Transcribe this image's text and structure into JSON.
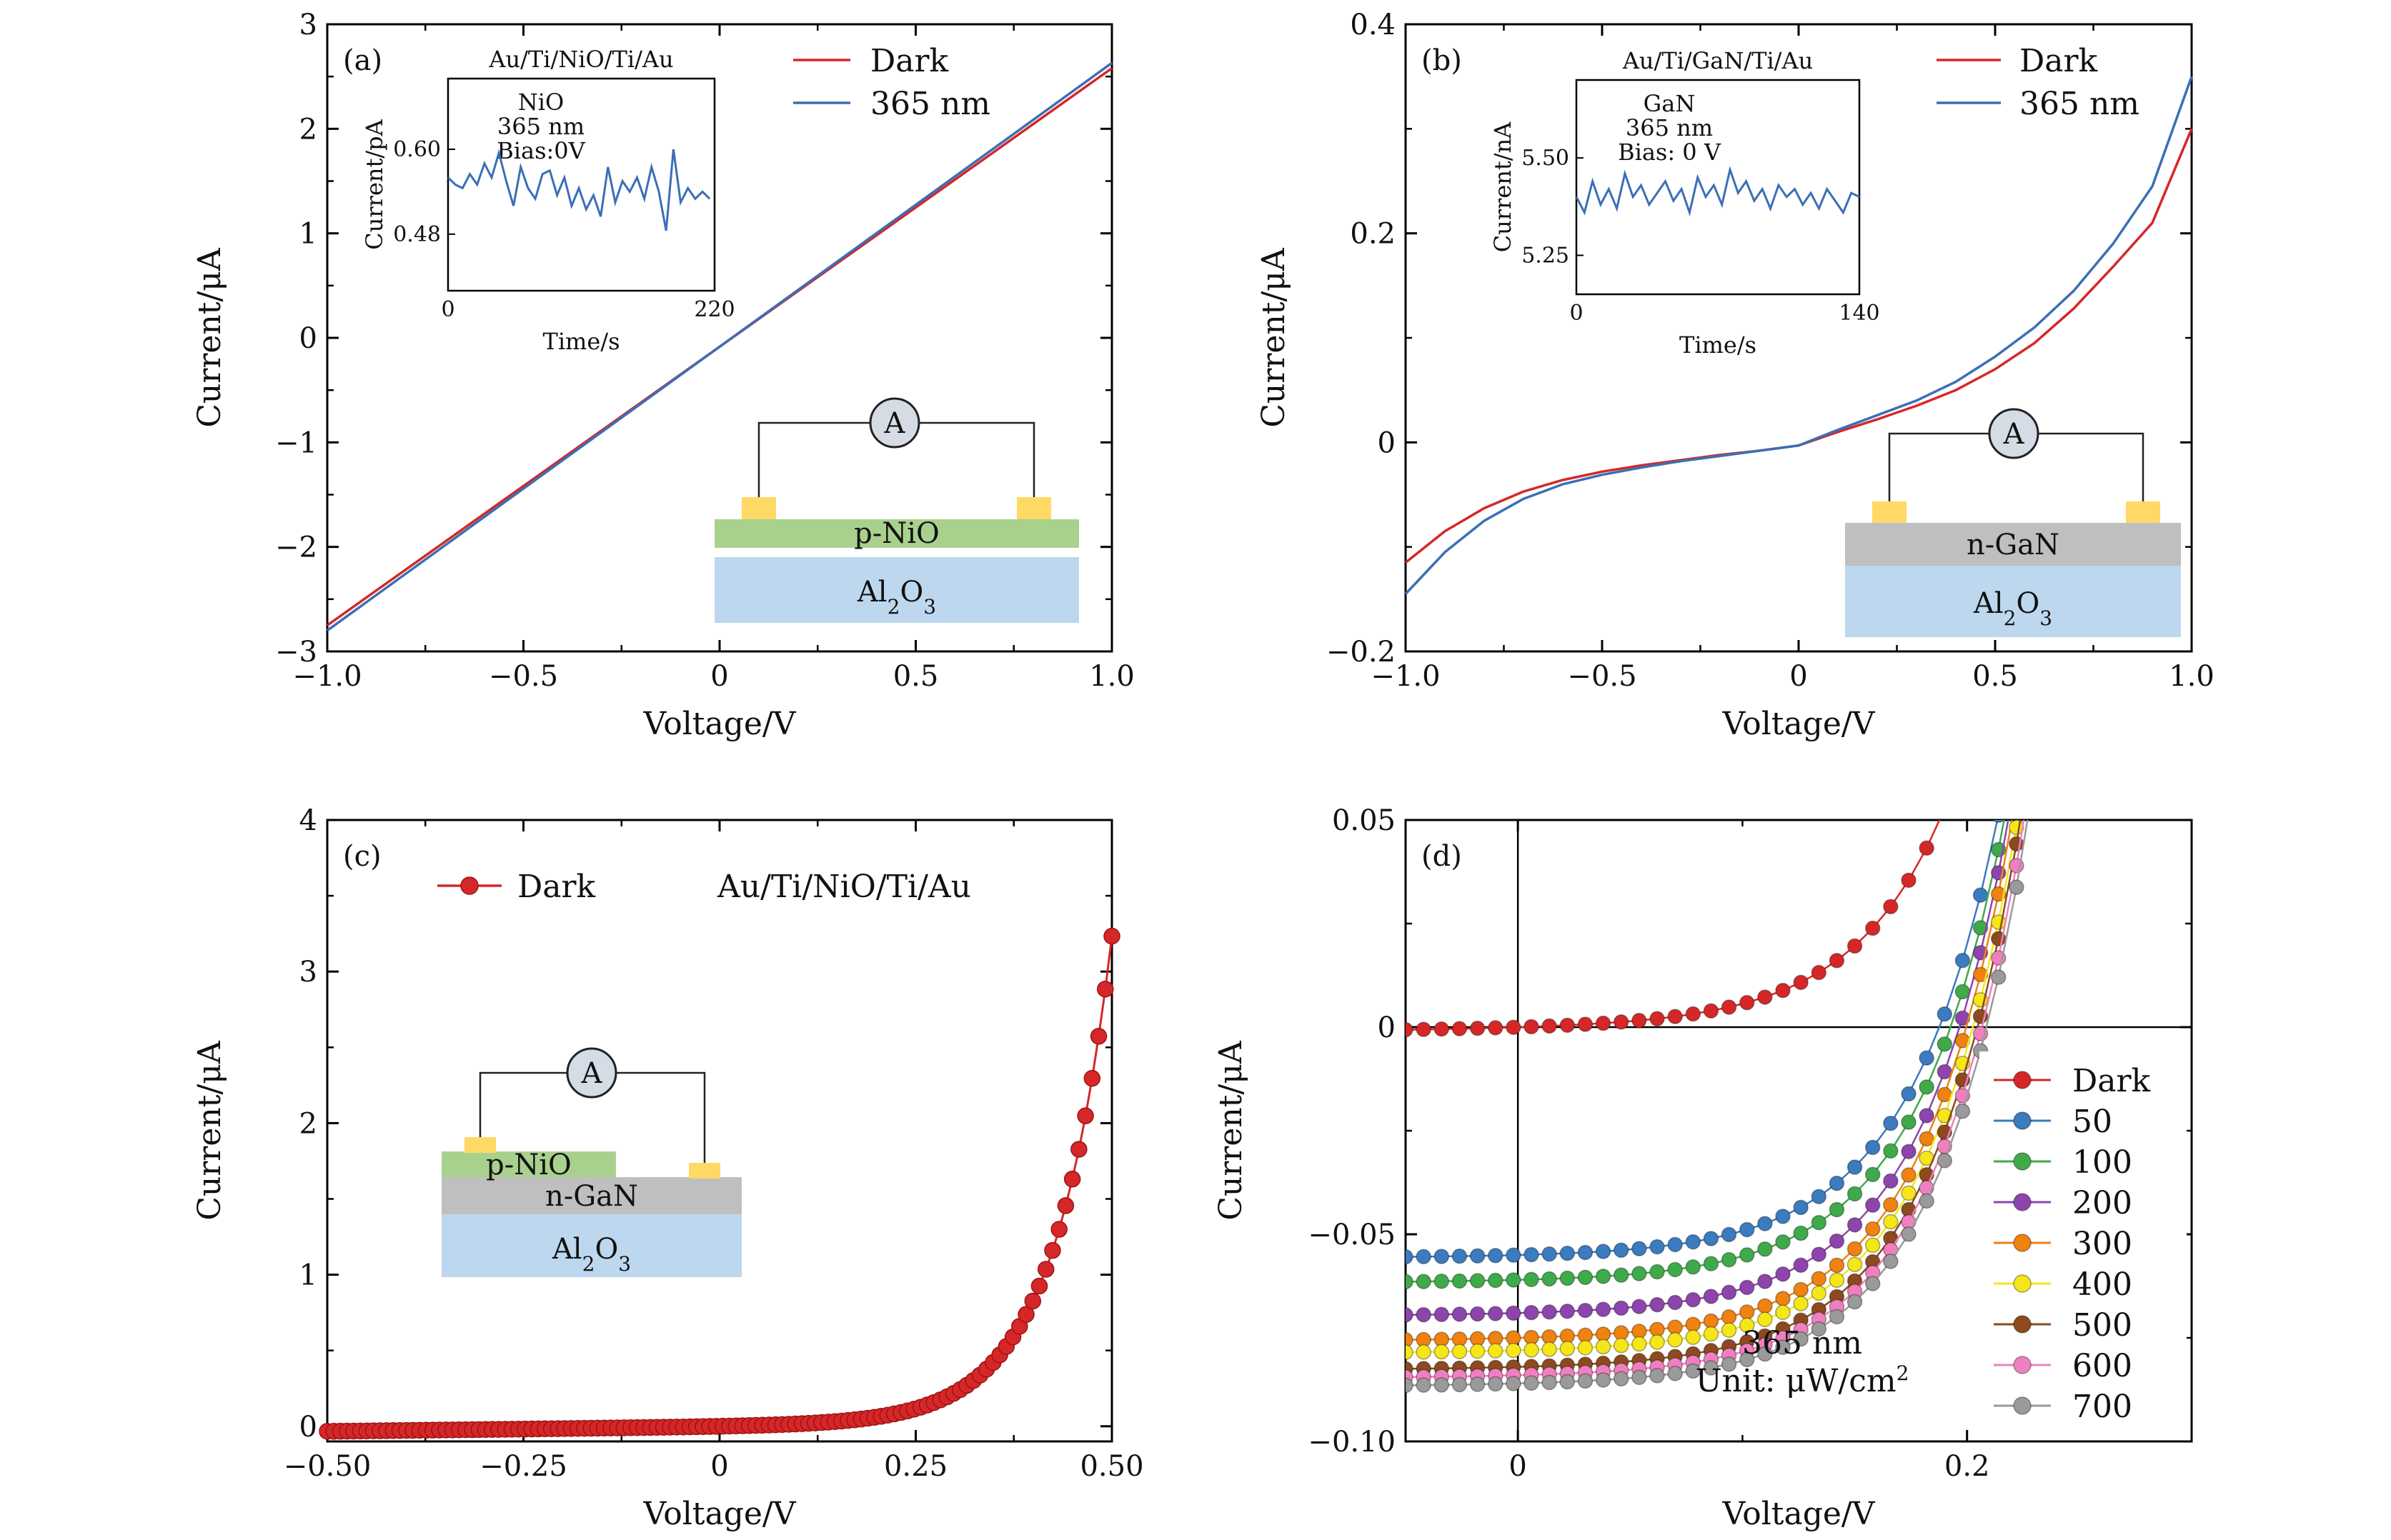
{
  "colors": {
    "dark": "#d62728",
    "light": "#3b6fb6",
    "p_nio": "#a9d18e",
    "n_gan": "#bfbfbf",
    "al2o3": "#bdd7ee",
    "electrode": "#ffd966"
  },
  "chart_data": [
    {
      "panel": "(a)",
      "type": "line",
      "xlabel": "Voltage/V",
      "ylabel": "Current/μA",
      "xlim": [
        -1.0,
        1.0
      ],
      "ylim": [
        -3,
        3
      ],
      "xticks": [
        "−1.0",
        "−0.5",
        "0",
        "0.5",
        "1.0"
      ],
      "yticks": [
        "−3",
        "−2",
        "−1",
        "0",
        "1",
        "2",
        "3"
      ],
      "legend": [
        "Dark",
        "365 nm"
      ],
      "series": [
        {
          "name": "Dark",
          "x": [
            -1.0,
            1.0
          ],
          "y": [
            -2.75,
            2.58
          ]
        },
        {
          "name": "365 nm",
          "x": [
            -1.0,
            1.0
          ],
          "y": [
            -2.8,
            2.63
          ]
        }
      ],
      "inset": {
        "title": "Au/Ti/NiO/Ti/Au",
        "note": [
          "NiO",
          "365 nm",
          "Bias:0V"
        ],
        "xlabel": "Time/s",
        "ylabel": "Current/pA",
        "xticks": [
          "0",
          "220"
        ],
        "yticks": [
          "0.48",
          "0.60"
        ],
        "xlim": [
          0,
          220
        ],
        "ylim": [
          0.4,
          0.7
        ],
        "x": [
          0,
          6,
          12,
          18,
          24,
          30,
          36,
          42,
          48,
          54,
          60,
          66,
          72,
          78,
          84,
          90,
          96,
          102,
          108,
          114,
          120,
          126,
          132,
          138,
          144,
          150,
          156,
          162,
          168,
          174,
          180,
          186,
          192,
          198,
          204,
          210,
          216
        ],
        "y": [
          0.56,
          0.55,
          0.545,
          0.565,
          0.55,
          0.58,
          0.56,
          0.595,
          0.555,
          0.52,
          0.575,
          0.545,
          0.53,
          0.565,
          0.57,
          0.535,
          0.56,
          0.52,
          0.545,
          0.515,
          0.535,
          0.505,
          0.575,
          0.525,
          0.555,
          0.54,
          0.56,
          0.53,
          0.575,
          0.54,
          0.485,
          0.6,
          0.525,
          0.545,
          0.53,
          0.54,
          0.53
        ]
      },
      "schematic": {
        "electrode_left": "A",
        "layer_top": "p-NiO",
        "substrate": "Al",
        "substrate_sub": "2",
        "substrate_rest": "O",
        "substrate_sub2": "3"
      }
    },
    {
      "panel": "(b)",
      "type": "line",
      "xlabel": "Voltage/V",
      "ylabel": "Current/μA",
      "xlim": [
        -1.0,
        1.0
      ],
      "ylim": [
        -0.2,
        0.4
      ],
      "xticks": [
        "−1.0",
        "−0.5",
        "0",
        "0.5",
        "1.0"
      ],
      "yticks": [
        "−0.2",
        "0",
        "0.2",
        "0.4"
      ],
      "legend": [
        "Dark",
        "365 nm"
      ],
      "series": [
        {
          "name": "Dark",
          "x": [
            -1.0,
            -0.9,
            -0.8,
            -0.7,
            -0.6,
            -0.5,
            -0.4,
            -0.3,
            -0.2,
            -0.1,
            0,
            0.1,
            0.2,
            0.3,
            0.4,
            0.5,
            0.6,
            0.7,
            0.8,
            0.9,
            1.0
          ],
          "y": [
            -0.115,
            -0.085,
            -0.063,
            -0.047,
            -0.036,
            -0.028,
            -0.022,
            -0.017,
            -0.012,
            -0.008,
            -0.003,
            0.01,
            0.022,
            0.035,
            0.05,
            0.07,
            0.095,
            0.128,
            0.168,
            0.21,
            0.3
          ]
        },
        {
          "name": "365 nm",
          "x": [
            -1.0,
            -0.9,
            -0.8,
            -0.7,
            -0.6,
            -0.5,
            -0.4,
            -0.3,
            -0.2,
            -0.1,
            0,
            0.1,
            0.2,
            0.3,
            0.4,
            0.5,
            0.6,
            0.7,
            0.8,
            0.9,
            1.0
          ],
          "y": [
            -0.145,
            -0.105,
            -0.075,
            -0.054,
            -0.04,
            -0.031,
            -0.024,
            -0.018,
            -0.013,
            -0.008,
            -0.003,
            0.012,
            0.026,
            0.04,
            0.058,
            0.082,
            0.11,
            0.145,
            0.19,
            0.245,
            0.35
          ]
        }
      ],
      "inset": {
        "title": "Au/Ti/GaN/Ti/Au",
        "note": [
          "GaN",
          "365 nm",
          "Bias: 0 V"
        ],
        "xlabel": "Time/s",
        "ylabel": "Current/nA",
        "xticks": [
          "0",
          "140"
        ],
        "yticks": [
          "5.25",
          "5.50"
        ],
        "xlim": [
          0,
          140
        ],
        "ylim": [
          5.15,
          5.7
        ],
        "x": [
          0,
          4,
          8,
          12,
          16,
          20,
          24,
          28,
          32,
          36,
          40,
          44,
          48,
          52,
          56,
          60,
          64,
          68,
          72,
          76,
          80,
          84,
          88,
          92,
          96,
          100,
          104,
          108,
          112,
          116,
          120,
          124,
          128,
          132,
          136,
          140
        ],
        "y": [
          5.4,
          5.36,
          5.44,
          5.38,
          5.42,
          5.37,
          5.46,
          5.4,
          5.43,
          5.38,
          5.41,
          5.44,
          5.39,
          5.42,
          5.36,
          5.45,
          5.4,
          5.43,
          5.38,
          5.47,
          5.41,
          5.44,
          5.39,
          5.42,
          5.37,
          5.43,
          5.4,
          5.42,
          5.38,
          5.41,
          5.37,
          5.42,
          5.39,
          5.36,
          5.41,
          5.4
        ]
      },
      "schematic": {
        "electrode_left": "A",
        "layer_top": "n-GaN",
        "substrate": "Al",
        "substrate_sub": "2",
        "substrate_rest": "O",
        "substrate_sub2": "3"
      }
    },
    {
      "panel": "(c)",
      "type": "scatter",
      "xlabel": "Voltage/V",
      "ylabel": "Current/μA",
      "xlim": [
        -0.5,
        0.5
      ],
      "ylim": [
        -0.1,
        4
      ],
      "xticks": [
        "−0.50",
        "−0.25",
        "0",
        "0.25",
        "0.50"
      ],
      "yticks": [
        "0",
        "1",
        "2",
        "3",
        "4"
      ],
      "legend": [
        "Dark"
      ],
      "annotation": "Au/Ti/NiO/Ti/Au",
      "series": [
        {
          "name": "Dark",
          "model": "diode",
          "x_start": -0.5,
          "x_end": 0.5,
          "n": 120
        }
      ],
      "schematic": {
        "electrode_left": "A",
        "layer_top": "p-NiO",
        "layer_mid": "n-GaN",
        "substrate": "Al",
        "substrate_sub": "2",
        "substrate_rest": "O",
        "substrate_sub2": "3"
      }
    },
    {
      "panel": "(d)",
      "type": "line",
      "xlabel": "Voltage/V",
      "ylabel": "Current/μA",
      "xlim": [
        -0.05,
        0.3
      ],
      "ylim": [
        -0.1,
        0.05
      ],
      "xticks": [
        "0",
        "0.2"
      ],
      "yticks": [
        "−0.10",
        "−0.05",
        "0",
        "0.05"
      ],
      "annotation_line1": "365 nm",
      "annotation_line2": "Unit: μW/cm",
      "annotation_sup": "2",
      "series": [
        {
          "name": "Dark",
          "color": "#d62728",
          "isc": 0.0,
          "voc": 0.0
        },
        {
          "name": "50",
          "color": "#3b7bbf",
          "isc": -0.055,
          "voc": 0.188
        },
        {
          "name": "100",
          "color": "#3faa4a",
          "isc": -0.061,
          "voc": 0.193
        },
        {
          "name": "200",
          "color": "#8e44ad",
          "isc": -0.069,
          "voc": 0.197
        },
        {
          "name": "300",
          "color": "#f0820f",
          "isc": -0.075,
          "voc": 0.2
        },
        {
          "name": "400",
          "color": "#f5e61a",
          "isc": -0.078,
          "voc": 0.203
        },
        {
          "name": "500",
          "color": "#8c4a1e",
          "isc": -0.082,
          "voc": 0.205
        },
        {
          "name": "600",
          "color": "#f07fc0",
          "isc": -0.084,
          "voc": 0.207
        },
        {
          "name": "700",
          "color": "#9a9a9a",
          "isc": -0.086,
          "voc": 0.209
        }
      ]
    }
  ]
}
